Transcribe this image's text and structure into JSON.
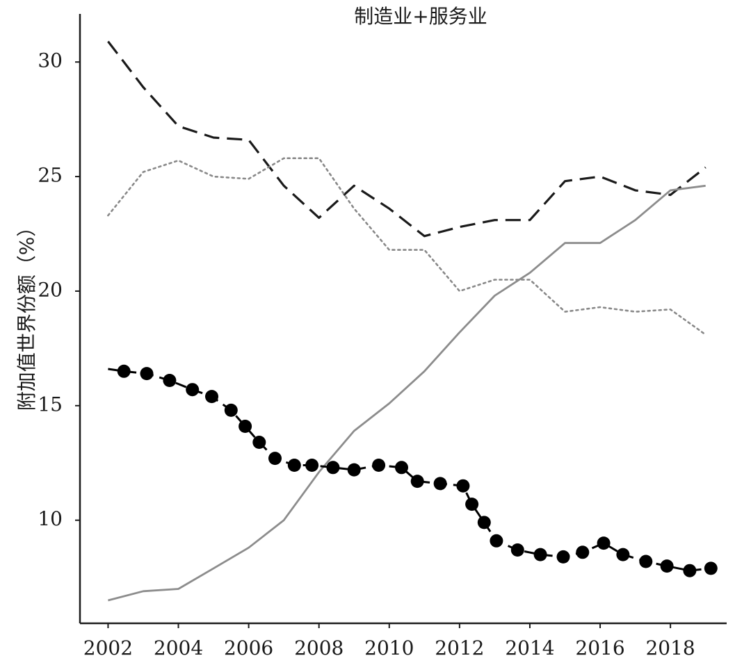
{
  "chart_data": {
    "type": "line",
    "title": "制造业+服务业",
    "xlabel": "",
    "ylabel": "附加值世界份额（%）",
    "xlim": [
      2001.2,
      2019.6
    ],
    "ylim": [
      5.5,
      32.1
    ],
    "xticks": [
      2002,
      2004,
      2006,
      2008,
      2010,
      2012,
      2014,
      2016,
      2018
    ],
    "yticks": [
      10,
      15,
      20,
      25,
      30
    ],
    "grid": false,
    "legend": "none",
    "series": [
      {
        "style": "dashed",
        "color": "#1a1a1a",
        "x": [
          2002,
          2003,
          2004,
          2005,
          2006,
          2007,
          2008,
          2009,
          2010,
          2011,
          2012,
          2013,
          2014,
          2015,
          2016,
          2017,
          2018,
          2019
        ],
        "y": [
          30.9,
          28.9,
          27.2,
          26.7,
          26.6,
          24.6,
          23.2,
          24.6,
          23.6,
          22.4,
          22.8,
          23.1,
          23.1,
          24.8,
          25.0,
          24.4,
          24.2,
          25.4
        ]
      },
      {
        "style": "dotted",
        "color": "#888888",
        "x": [
          2002,
          2003,
          2004,
          2005,
          2006,
          2007,
          2008,
          2009,
          2010,
          2011,
          2012,
          2013,
          2014,
          2015,
          2016,
          2017,
          2018,
          2019
        ],
        "y": [
          23.3,
          25.2,
          25.7,
          25.0,
          24.9,
          25.8,
          25.8,
          23.6,
          21.8,
          21.8,
          20.0,
          20.5,
          20.5,
          19.1,
          19.3,
          19.1,
          19.2,
          18.1
        ]
      },
      {
        "style": "solid",
        "color": "#8c8c8c",
        "x": [
          2002,
          2003,
          2004,
          2005,
          2006,
          2007,
          2008,
          2009,
          2010,
          2011,
          2012,
          2013,
          2014,
          2015,
          2016,
          2017,
          2018,
          2019
        ],
        "y": [
          6.5,
          6.9,
          7.0,
          7.9,
          8.8,
          10.0,
          12.1,
          13.9,
          15.1,
          16.5,
          18.2,
          19.8,
          20.8,
          22.1,
          22.1,
          23.1,
          24.4,
          24.6
        ]
      },
      {
        "style": "dashed-markers",
        "color": "#000000",
        "x": [
          2002,
          2002.45,
          2003.1,
          2003.75,
          2004.4,
          2004.95,
          2005.5,
          2005.9,
          2006.3,
          2006.75,
          2007.3,
          2007.8,
          2008.4,
          2009,
          2009.7,
          2010.35,
          2010.8,
          2011.45,
          2012.1,
          2012.35,
          2012.7,
          2013.05,
          2013.65,
          2014.3,
          2014.95,
          2015.5,
          2016.1,
          2016.65,
          2017.3,
          2017.9,
          2018.55,
          2019.15
        ],
        "y": [
          16.6,
          16.5,
          16.4,
          16.1,
          15.7,
          15.4,
          14.8,
          14.1,
          13.4,
          12.7,
          12.4,
          12.4,
          12.3,
          12.2,
          12.4,
          12.3,
          11.7,
          11.6,
          11.5,
          10.7,
          9.9,
          9.1,
          8.7,
          8.5,
          8.4,
          8.6,
          9.0,
          8.5,
          8.2,
          8.0,
          7.8,
          7.9
        ]
      }
    ]
  }
}
